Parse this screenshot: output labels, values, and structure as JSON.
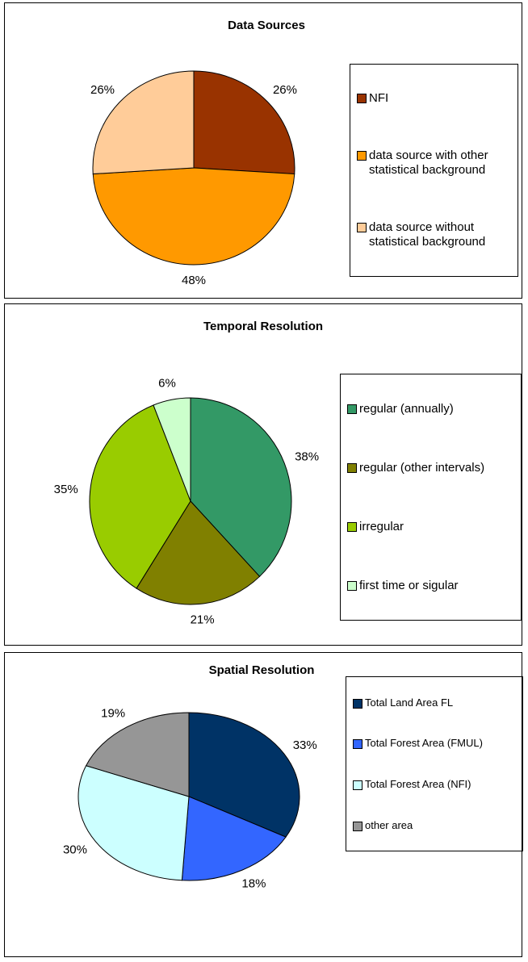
{
  "chart_data": [
    {
      "type": "pie",
      "title": "Data Sources",
      "categories": [
        "NFI",
        "data source with other statistical background",
        "data source without statistical background"
      ],
      "values": [
        26,
        48,
        26
      ],
      "value_labels": [
        "26%",
        "48%",
        "26%"
      ],
      "colors": [
        "#993300",
        "#ff9900",
        "#ffcc99"
      ],
      "legend": "right"
    },
    {
      "type": "pie",
      "title": "Temporal Resolution",
      "categories": [
        "regular (annually)",
        "regular (other intervals)",
        "irregular",
        "first time or sigular"
      ],
      "values": [
        38,
        21,
        35,
        6
      ],
      "value_labels": [
        "38%",
        "21%",
        "35%",
        "6%"
      ],
      "colors": [
        "#339966",
        "#808000",
        "#99cc00",
        "#ccffcc"
      ],
      "legend": "right"
    },
    {
      "type": "pie",
      "title": "Spatial Resolution",
      "categories": [
        "Total Land Area FL",
        "Total Forest Area (FMUL)",
        "Total Forest Area (NFI)",
        "other area"
      ],
      "values": [
        33,
        18,
        30,
        19
      ],
      "value_labels": [
        "33%",
        "18%",
        "30%",
        "19%"
      ],
      "colors": [
        "#003366",
        "#3366ff",
        "#ccffff",
        "#969696"
      ],
      "legend": "right"
    }
  ]
}
